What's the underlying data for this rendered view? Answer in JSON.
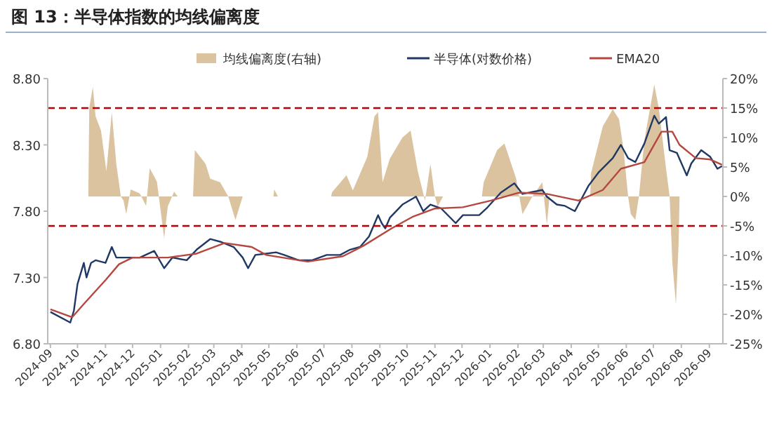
{
  "chart_data": {
    "type": "line",
    "title": "图 13：半导体指数的均线偏离度",
    "xlim": [
      "2024-08-29",
      "2026-09-16"
    ],
    "xticks": [
      {
        "value": "2024-09-01",
        "label": "2024-09"
      },
      {
        "value": "2024-10-01",
        "label": "2024-10"
      },
      {
        "value": "2024-11-01",
        "label": "2024-11"
      },
      {
        "value": "2024-12-01",
        "label": "2024-12"
      },
      {
        "value": "2025-01-01",
        "label": "2025-01"
      },
      {
        "value": "2025-02-01",
        "label": "2025-02"
      },
      {
        "value": "2025-03-01",
        "label": "2025-03"
      },
      {
        "value": "2025-04-01",
        "label": "2025-04"
      },
      {
        "value": "2025-05-01",
        "label": "2025-05"
      },
      {
        "value": "2025-06-01",
        "label": "2025-06"
      },
      {
        "value": "2025-07-01",
        "label": "2025-07"
      },
      {
        "value": "2025-08-01",
        "label": "2025-08"
      },
      {
        "value": "2025-09-01",
        "label": "2025-09"
      },
      {
        "value": "2025-10-01",
        "label": "2025-10"
      },
      {
        "value": "2025-11-01",
        "label": "2025-11"
      },
      {
        "value": "2025-12-01",
        "label": "2025-12"
      },
      {
        "value": "2026-01-01",
        "label": "2026-01"
      },
      {
        "value": "2026-02-01",
        "label": "2026-02"
      },
      {
        "value": "2026-03-01",
        "label": "2026-03"
      },
      {
        "value": "2026-04-01",
        "label": "2026-04"
      },
      {
        "value": "2026-05-01",
        "label": "2026-05"
      },
      {
        "value": "2026-06-01",
        "label": "2026-06"
      },
      {
        "value": "2026-07-01",
        "label": "2026-07"
      },
      {
        "value": "2026-08-01",
        "label": "2026-08"
      },
      {
        "value": "2026-09-01",
        "label": "2026-09"
      }
    ],
    "ylim": [
      6.8,
      8.8
    ],
    "yticks": [
      {
        "value": 6.8,
        "label": "6.80"
      },
      {
        "value": 7.3,
        "label": "7.30"
      },
      {
        "value": 7.8,
        "label": "7.80"
      },
      {
        "value": 8.3,
        "label": "8.30"
      },
      {
        "value": 8.8,
        "label": "8.80"
      }
    ],
    "y2lim": [
      -25,
      20
    ],
    "y2ticks": [
      {
        "value": -25,
        "label": "-25%"
      },
      {
        "value": -20,
        "label": "-20%"
      },
      {
        "value": -15,
        "label": "-15%"
      },
      {
        "value": -10,
        "label": "-10%"
      },
      {
        "value": -5,
        "label": "-5%"
      },
      {
        "value": 0,
        "label": "0%"
      },
      {
        "value": 5,
        "label": "5%"
      },
      {
        "value": 10,
        "label": "10%"
      },
      {
        "value": 15,
        "label": "15%"
      },
      {
        "value": 20,
        "label": "20%"
      }
    ],
    "legend": "top",
    "grid": false,
    "marker": "none",
    "ref_lines": [
      {
        "axis": "y2",
        "value": 15,
        "color": "#c00000",
        "line_style": "dashed"
      },
      {
        "axis": "y2",
        "value": -5,
        "color": "#c00000",
        "line_style": "dashed"
      }
    ],
    "series": [
      {
        "name": "均线偏离度(右轴)",
        "type": "area",
        "axis": "y2",
        "color": "#dcc3a0",
        "x": [
          "2024-10-13",
          "2024-10-14",
          "2024-10-18",
          "2024-10-21",
          "2024-10-27",
          "2024-11-02",
          "2024-11-08",
          "2024-11-13",
          "2024-11-18",
          "2024-11-21",
          "2024-11-24",
          "2024-11-29",
          "2024-12-09",
          "2024-12-16",
          "2024-12-20",
          "2024-12-28",
          "2025-01-05",
          "2025-01-09",
          "2025-01-16",
          "2025-01-20",
          "2025-02-06",
          "2025-02-08",
          "2025-02-20",
          "2025-02-25",
          "2025-03-08",
          "2025-03-17",
          "2025-03-25",
          "2025-04-02",
          "2025-05-06",
          "2025-05-07",
          "2025-05-11",
          "2025-07-09",
          "2025-07-10",
          "2025-07-26",
          "2025-08-02",
          "2025-08-18",
          "2025-08-26",
          "2025-08-30",
          "2025-09-04",
          "2025-09-12",
          "2025-09-26",
          "2025-10-05",
          "2025-10-13",
          "2025-10-21",
          "2025-10-27",
          "2025-11-01",
          "2025-11-04",
          "2025-11-10",
          "2025-12-23",
          "2025-12-25",
          "2026-01-09",
          "2026-01-17",
          "2026-01-30",
          "2026-02-06",
          "2026-02-17",
          "2026-02-28",
          "2026-03-05",
          "2026-03-08",
          "2026-04-22",
          "2026-04-23",
          "2026-05-06",
          "2026-05-17",
          "2026-05-24",
          "2026-05-29",
          "2026-06-03",
          "2026-06-06",
          "2026-06-11",
          "2026-06-15",
          "2026-06-21",
          "2026-07-02",
          "2026-07-07",
          "2026-07-15",
          "2026-07-19",
          "2026-07-22",
          "2026-07-26",
          "2026-07-29",
          "2026-07-30"
        ],
        "values": [
          0,
          15,
          18.6,
          13.6,
          11.2,
          4.3,
          14.3,
          5.5,
          0,
          -0.7,
          -3,
          1.2,
          0.5,
          -1.6,
          4.8,
          2.5,
          -7.1,
          -1.7,
          0.8,
          0,
          0,
          7.9,
          5.5,
          3,
          2.4,
          0,
          -4,
          0,
          0,
          1.2,
          0,
          0,
          0.7,
          3.6,
          1.0,
          6.7,
          13.6,
          14.3,
          2.4,
          6.4,
          10,
          11.2,
          4.3,
          -0.7,
          5.5,
          0,
          -1.7,
          0,
          0,
          2.4,
          7.9,
          9,
          3,
          -3,
          0,
          2.4,
          -4.8,
          0,
          0,
          4,
          11.9,
          14.8,
          13.1,
          7.9,
          0,
          -3,
          -4,
          0,
          9.5,
          19,
          15,
          4.8,
          0,
          -11.2,
          -18.3,
          -7.9,
          0
        ]
      },
      {
        "name": "半导体(对数价格)",
        "color": "#1f3864",
        "x": [
          "2024-09-01",
          "2024-09-23",
          "2024-09-27",
          "2024-10-01",
          "2024-10-08",
          "2024-10-11",
          "2024-10-16",
          "2024-10-21",
          "2024-11-01",
          "2024-11-08",
          "2024-11-13",
          "2024-11-24",
          "2024-12-09",
          "2024-12-25",
          "2025-01-05",
          "2025-01-14",
          "2025-01-30",
          "2025-02-10",
          "2025-02-25",
          "2025-03-08",
          "2025-03-23",
          "2025-04-02",
          "2025-04-08",
          "2025-04-16",
          "2025-04-28",
          "2025-05-09",
          "2025-05-18",
          "2025-06-03",
          "2025-06-18",
          "2025-07-04",
          "2025-07-19",
          "2025-07-30",
          "2025-08-10",
          "2025-08-20",
          "2025-08-30",
          "2025-09-03",
          "2025-09-07",
          "2025-09-12",
          "2025-09-26",
          "2025-10-11",
          "2025-10-19",
          "2025-10-27",
          "2025-11-08",
          "2025-11-24",
          "2025-12-02",
          "2025-12-20",
          "2025-12-28",
          "2026-01-13",
          "2026-01-28",
          "2026-02-06",
          "2026-02-28",
          "2026-03-05",
          "2026-03-16",
          "2026-03-25",
          "2026-04-05",
          "2026-04-09",
          "2026-04-20",
          "2026-05-01",
          "2026-05-17",
          "2026-05-26",
          "2026-06-03",
          "2026-06-11",
          "2026-06-21",
          "2026-07-02",
          "2026-07-07",
          "2026-07-15",
          "2026-07-19",
          "2026-07-27",
          "2026-08-07",
          "2026-08-12",
          "2026-08-23",
          "2026-09-02",
          "2026-09-10",
          "2026-09-15"
        ],
        "values": [
          7.04,
          6.96,
          7.05,
          7.25,
          7.41,
          7.3,
          7.41,
          7.43,
          7.41,
          7.53,
          7.45,
          7.45,
          7.45,
          7.5,
          7.37,
          7.45,
          7.43,
          7.51,
          7.59,
          7.57,
          7.53,
          7.45,
          7.37,
          7.47,
          7.48,
          7.49,
          7.47,
          7.43,
          7.43,
          7.47,
          7.47,
          7.51,
          7.53,
          7.61,
          7.77,
          7.71,
          7.67,
          7.75,
          7.85,
          7.91,
          7.8,
          7.85,
          7.82,
          7.71,
          7.77,
          7.77,
          7.82,
          7.94,
          8.01,
          7.93,
          7.96,
          7.91,
          7.85,
          7.84,
          7.8,
          7.85,
          7.99,
          8.09,
          8.2,
          8.3,
          8.2,
          8.17,
          8.31,
          8.52,
          8.46,
          8.51,
          8.26,
          8.24,
          8.07,
          8.16,
          8.26,
          8.21,
          8.12,
          8.14
        ]
      },
      {
        "name": "EMA20",
        "color": "#b5473f",
        "x": [
          "2024-09-01",
          "2024-09-25",
          "2024-10-08",
          "2024-11-01",
          "2024-11-16",
          "2024-12-01",
          "2025-01-09",
          "2025-02-10",
          "2025-03-13",
          "2025-04-12",
          "2025-04-28",
          "2025-06-13",
          "2025-07-22",
          "2025-08-14",
          "2025-09-14",
          "2025-10-08",
          "2025-11-01",
          "2025-12-02",
          "2026-01-02",
          "2026-02-02",
          "2026-03-05",
          "2026-04-09",
          "2026-05-06",
          "2026-05-26",
          "2026-06-21",
          "2026-07-10",
          "2026-07-22",
          "2026-07-30",
          "2026-08-17",
          "2026-09-02",
          "2026-09-15"
        ],
        "values": [
          7.06,
          7.0,
          7.1,
          7.28,
          7.4,
          7.45,
          7.45,
          7.48,
          7.56,
          7.53,
          7.47,
          7.42,
          7.46,
          7.54,
          7.67,
          7.76,
          7.82,
          7.83,
          7.88,
          7.94,
          7.93,
          7.88,
          7.96,
          8.12,
          8.17,
          8.4,
          8.4,
          8.3,
          8.2,
          8.19,
          8.15
        ]
      }
    ]
  }
}
